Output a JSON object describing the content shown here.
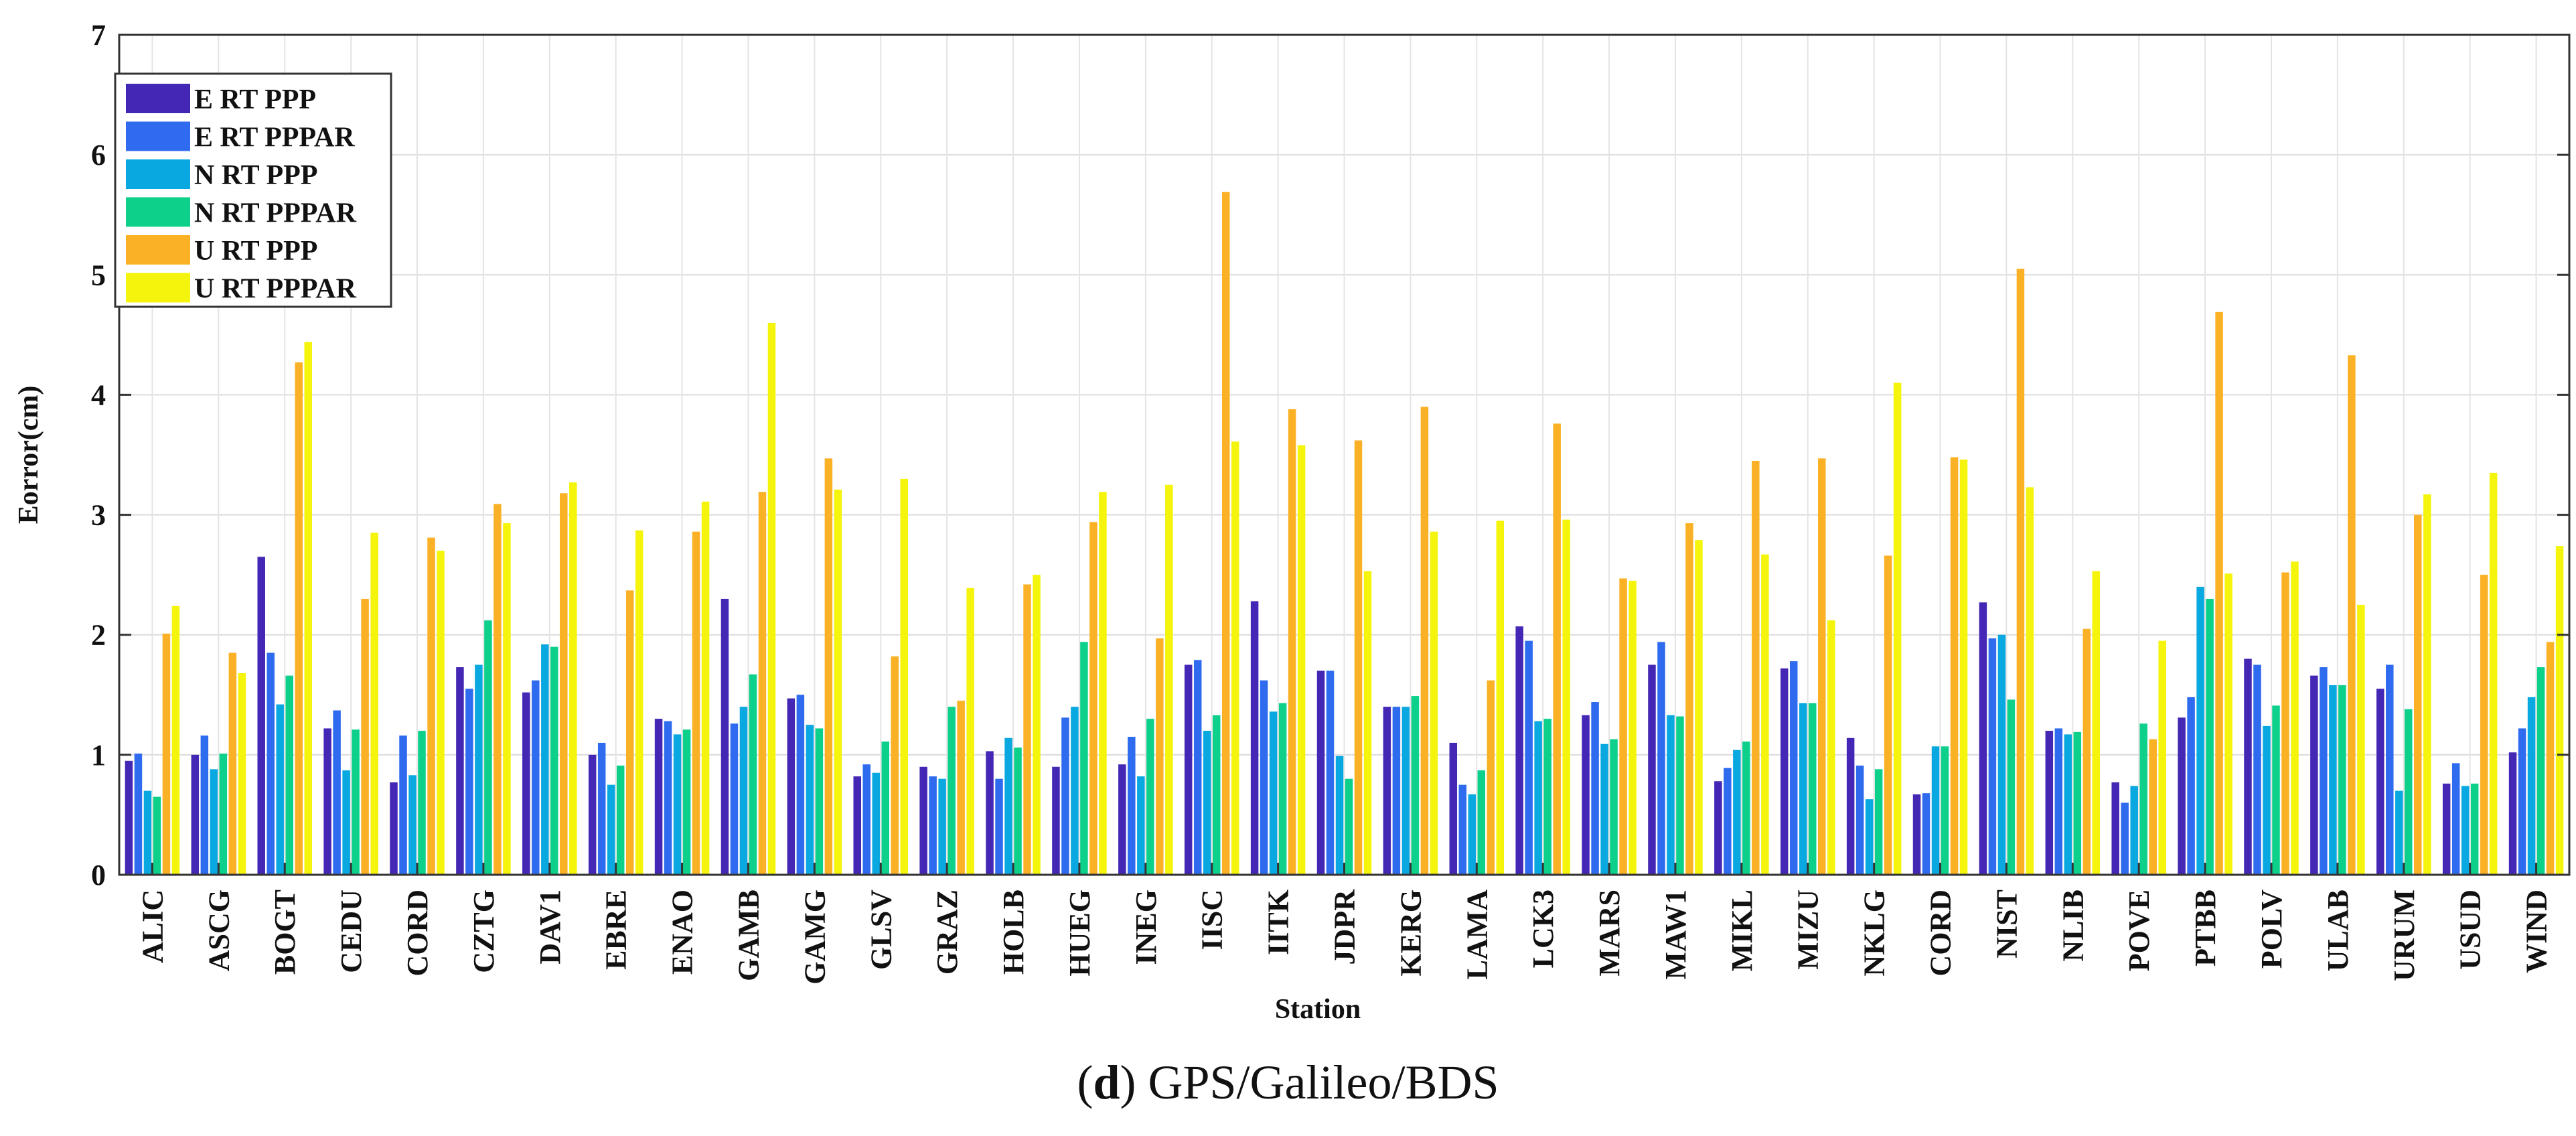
{
  "caption": {
    "label": "d",
    "text": "GPS/Galileo/BDS"
  },
  "chart_data": {
    "type": "bar",
    "title": "",
    "xlabel": "Station",
    "ylabel": "Eorror(cm)",
    "ylim": [
      0,
      7
    ],
    "yticks": [
      0,
      1,
      2,
      3,
      4,
      5,
      6,
      7
    ],
    "grid": true,
    "legend_position": "top-left",
    "categories": [
      "ALIC",
      "ASCG",
      "BOGT",
      "CEDU",
      "CORD",
      "CZTG",
      "DAV1",
      "EBRE",
      "ENAO",
      "GAMB",
      "GAMG",
      "GLSV",
      "GRAZ",
      "HOLB",
      "HUEG",
      "INEG",
      "IISC",
      "IITK",
      "JDPR",
      "KERG",
      "LAMA",
      "LCK3",
      "MARS",
      "MAW1",
      "MIKL",
      "MIZU",
      "NKLG",
      "CORD",
      "NIST",
      "NLIB",
      "POVE",
      "PTBB",
      "POLV",
      "ULAB",
      "URUM",
      "USUD",
      "WIND"
    ],
    "series": [
      {
        "name": "E RT PPP",
        "color": "#4527b5",
        "values": [
          0.95,
          1.0,
          2.65,
          1.22,
          0.77,
          1.73,
          1.52,
          1.0,
          1.3,
          2.3,
          1.47,
          0.82,
          0.9,
          1.03,
          0.9,
          0.92,
          1.75,
          2.28,
          1.7,
          1.4,
          1.1,
          2.07,
          1.33,
          1.75,
          0.78,
          1.72,
          1.14,
          0.67,
          2.27,
          1.2,
          0.77,
          1.31,
          1.8,
          1.66,
          1.55,
          0.76,
          1.02
        ]
      },
      {
        "name": "E RT PPPAR",
        "color": "#2f6bef",
        "values": [
          1.01,
          1.16,
          1.85,
          1.37,
          1.16,
          1.55,
          1.62,
          1.1,
          1.28,
          1.26,
          1.5,
          0.92,
          0.82,
          0.8,
          1.31,
          1.15,
          1.79,
          1.62,
          1.7,
          1.4,
          0.75,
          1.95,
          1.44,
          1.94,
          0.89,
          1.78,
          0.91,
          0.68,
          1.97,
          1.22,
          0.6,
          1.48,
          1.75,
          1.73,
          1.75,
          0.93,
          1.22
        ]
      },
      {
        "name": "N RT PPP",
        "color": "#0aa8e0",
        "values": [
          0.7,
          0.88,
          1.42,
          0.87,
          0.83,
          1.75,
          1.92,
          0.75,
          1.17,
          1.4,
          1.25,
          0.85,
          0.8,
          1.14,
          1.4,
          0.82,
          1.2,
          1.36,
          0.99,
          1.4,
          0.67,
          1.28,
          1.09,
          1.33,
          1.04,
          1.43,
          0.63,
          1.07,
          2.0,
          1.17,
          0.74,
          2.4,
          1.24,
          1.58,
          0.7,
          0.74,
          1.48
        ]
      },
      {
        "name": "N RT PPPAR",
        "color": "#0dd08a",
        "values": [
          0.65,
          1.01,
          1.66,
          1.21,
          1.2,
          2.12,
          1.9,
          0.91,
          1.21,
          1.67,
          1.22,
          1.11,
          1.4,
          1.06,
          1.94,
          1.3,
          1.33,
          1.43,
          0.8,
          1.49,
          0.87,
          1.3,
          1.13,
          1.32,
          1.11,
          1.43,
          0.88,
          1.07,
          1.46,
          1.19,
          1.26,
          2.3,
          1.41,
          1.58,
          1.38,
          0.76,
          1.73
        ]
      },
      {
        "name": "U RT PPP",
        "color": "#fbb125",
        "values": [
          2.01,
          1.85,
          4.27,
          2.3,
          2.81,
          3.09,
          3.18,
          2.37,
          2.86,
          3.19,
          3.47,
          1.82,
          1.45,
          2.42,
          2.94,
          1.97,
          5.69,
          3.88,
          3.62,
          3.9,
          1.62,
          3.76,
          2.47,
          2.93,
          3.45,
          3.47,
          2.66,
          3.48,
          5.05,
          2.05,
          1.13,
          4.69,
          2.52,
          4.33,
          3.0,
          2.5,
          1.94
        ]
      },
      {
        "name": "U RT PPPAR",
        "color": "#f4f40c",
        "values": [
          2.24,
          1.68,
          4.44,
          2.85,
          2.7,
          2.93,
          3.27,
          2.87,
          3.11,
          4.6,
          3.21,
          3.3,
          2.39,
          2.5,
          3.19,
          3.25,
          3.61,
          3.58,
          2.53,
          2.86,
          2.95,
          2.96,
          2.45,
          2.79,
          2.67,
          2.12,
          4.1,
          3.46,
          3.23,
          2.53,
          1.95,
          2.51,
          2.61,
          2.25,
          3.17,
          3.35,
          2.74
        ]
      }
    ]
  }
}
